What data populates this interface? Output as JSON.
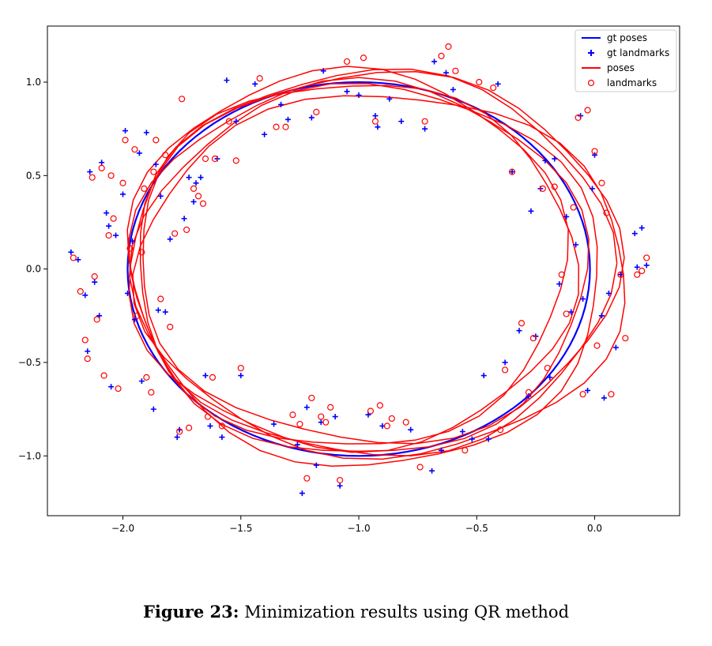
{
  "caption": {
    "label": "Figure 23:",
    "text": "Minimization results using QR method"
  },
  "chart_data": {
    "type": "scatter",
    "xlim": [
      -2.32,
      0.36
    ],
    "ylim": [
      -1.32,
      1.3
    ],
    "xticks": [
      -2.0,
      -1.5,
      -1.0,
      -0.5,
      0.0
    ],
    "xtick_labels": [
      "−2.0",
      "−1.5",
      "−1.0",
      "−0.5",
      "0.0"
    ],
    "yticks": [
      -1.0,
      -0.5,
      0.0,
      0.5,
      1.0
    ],
    "ytick_labels": [
      "−1.0",
      "−0.5",
      "0.0",
      "0.5",
      "1.0"
    ],
    "grid": false,
    "legend_position": "top-right",
    "colors": {
      "gt": "#0000ff",
      "est": "#ff0000"
    },
    "series": [
      {
        "name": "gt poses",
        "kind": "line",
        "shape": "ellipse",
        "center": [
          -1.0,
          0.0
        ],
        "radius": [
          0.98,
          1.0
        ]
      },
      {
        "name": "gt landmarks",
        "kind": "marker-plus",
        "points": [
          [
            -2.22,
            0.09
          ],
          [
            -2.19,
            0.05
          ],
          [
            -2.16,
            -0.14
          ],
          [
            -2.15,
            -0.44
          ],
          [
            -2.14,
            0.52
          ],
          [
            -2.12,
            -0.07
          ],
          [
            -2.1,
            -0.25
          ],
          [
            -2.09,
            0.57
          ],
          [
            -2.07,
            0.3
          ],
          [
            -2.06,
            0.23
          ],
          [
            -2.05,
            -0.63
          ],
          [
            -2.03,
            0.18
          ],
          [
            -2.0,
            0.4
          ],
          [
            -1.99,
            0.74
          ],
          [
            -1.98,
            -0.13
          ],
          [
            -1.96,
            0.15
          ],
          [
            -1.95,
            -0.27
          ],
          [
            -1.93,
            0.62
          ],
          [
            -1.92,
            -0.6
          ],
          [
            -1.9,
            0.73
          ],
          [
            -1.87,
            -0.75
          ],
          [
            -1.86,
            0.56
          ],
          [
            -1.85,
            -0.22
          ],
          [
            -1.84,
            0.39
          ],
          [
            -1.82,
            -0.23
          ],
          [
            -1.8,
            0.16
          ],
          [
            -1.77,
            -0.9
          ],
          [
            -1.76,
            -0.86
          ],
          [
            -1.74,
            0.27
          ],
          [
            -1.72,
            0.49
          ],
          [
            -1.7,
            0.36
          ],
          [
            -1.69,
            0.46
          ],
          [
            -1.67,
            0.49
          ],
          [
            -1.65,
            -0.57
          ],
          [
            -1.63,
            -0.84
          ],
          [
            -1.6,
            0.59
          ],
          [
            -1.58,
            -0.9
          ],
          [
            -1.56,
            1.01
          ],
          [
            -1.52,
            0.79
          ],
          [
            -1.5,
            -0.57
          ],
          [
            -1.44,
            0.99
          ],
          [
            -1.4,
            0.72
          ],
          [
            -1.36,
            -0.83
          ],
          [
            -1.33,
            0.88
          ],
          [
            -1.3,
            0.8
          ],
          [
            -1.26,
            -0.94
          ],
          [
            -1.24,
            -1.2
          ],
          [
            -1.22,
            -0.74
          ],
          [
            -1.2,
            0.81
          ],
          [
            -1.18,
            -1.05
          ],
          [
            -1.16,
            -0.82
          ],
          [
            -1.15,
            1.06
          ],
          [
            -1.1,
            -0.79
          ],
          [
            -1.08,
            -1.16
          ],
          [
            -1.05,
            0.95
          ],
          [
            -1.0,
            0.93
          ],
          [
            -0.96,
            -0.78
          ],
          [
            -0.93,
            0.82
          ],
          [
            -0.92,
            0.76
          ],
          [
            -0.9,
            -0.84
          ],
          [
            -0.87,
            0.91
          ],
          [
            -0.82,
            0.79
          ],
          [
            -0.78,
            -0.86
          ],
          [
            -0.72,
            0.75
          ],
          [
            -0.69,
            -1.08
          ],
          [
            -0.68,
            1.11
          ],
          [
            -0.65,
            -0.97
          ],
          [
            -0.63,
            1.05
          ],
          [
            -0.6,
            0.96
          ],
          [
            -0.56,
            -0.87
          ],
          [
            -0.52,
            -0.91
          ],
          [
            -0.47,
            -0.57
          ],
          [
            -0.45,
            -0.91
          ],
          [
            -0.41,
            0.99
          ],
          [
            -0.38,
            -0.5
          ],
          [
            -0.35,
            0.52
          ],
          [
            -0.32,
            -0.33
          ],
          [
            -0.28,
            -0.68
          ],
          [
            -0.27,
            0.31
          ],
          [
            -0.25,
            -0.36
          ],
          [
            -0.23,
            0.43
          ],
          [
            -0.21,
            0.58
          ],
          [
            -0.19,
            -0.58
          ],
          [
            -0.17,
            0.59
          ],
          [
            -0.15,
            -0.08
          ],
          [
            -0.12,
            0.28
          ],
          [
            -0.1,
            -0.23
          ],
          [
            -0.08,
            0.13
          ],
          [
            -0.06,
            0.82
          ],
          [
            -0.05,
            -0.16
          ],
          [
            -0.03,
            -0.65
          ],
          [
            -0.01,
            0.43
          ],
          [
            0.0,
            0.61
          ],
          [
            0.03,
            -0.25
          ],
          [
            0.04,
            -0.69
          ],
          [
            0.06,
            -0.13
          ],
          [
            0.09,
            -0.42
          ],
          [
            0.11,
            -0.03
          ],
          [
            0.17,
            0.19
          ],
          [
            0.18,
            0.01
          ],
          [
            0.2,
            0.22
          ],
          [
            0.22,
            0.02
          ]
        ]
      },
      {
        "name": "poses",
        "kind": "line",
        "shape": "loops",
        "loops": [
          [
            0.97,
            1.0,
            0.0,
            0.0
          ],
          [
            1.01,
            1.03,
            0.06,
            0.03
          ],
          [
            0.95,
            0.98,
            -0.03,
            0.02
          ],
          [
            1.04,
            0.97,
            0.1,
            -0.03
          ],
          [
            0.99,
            1.02,
            0.04,
            -0.04
          ],
          [
            0.93,
            1.01,
            -0.05,
            0.05
          ],
          [
            1.02,
            0.99,
            0.08,
            0.06
          ]
        ]
      },
      {
        "name": "landmarks",
        "kind": "marker-circle",
        "points": [
          [
            -2.21,
            0.06
          ],
          [
            -2.18,
            -0.12
          ],
          [
            -2.16,
            -0.38
          ],
          [
            -2.15,
            -0.48
          ],
          [
            -2.13,
            0.49
          ],
          [
            -2.12,
            -0.04
          ],
          [
            -2.11,
            -0.27
          ],
          [
            -2.09,
            0.54
          ],
          [
            -2.08,
            -0.57
          ],
          [
            -2.06,
            0.18
          ],
          [
            -2.05,
            0.5
          ],
          [
            -2.04,
            0.27
          ],
          [
            -2.02,
            -0.64
          ],
          [
            -2.0,
            0.46
          ],
          [
            -1.99,
            0.69
          ],
          [
            -1.97,
            0.11
          ],
          [
            -1.95,
            0.64
          ],
          [
            -1.94,
            -0.25
          ],
          [
            -1.92,
            0.09
          ],
          [
            -1.91,
            0.43
          ],
          [
            -1.9,
            -0.58
          ],
          [
            -1.88,
            -0.66
          ],
          [
            -1.87,
            0.52
          ],
          [
            -1.86,
            0.69
          ],
          [
            -1.84,
            -0.16
          ],
          [
            -1.82,
            0.61
          ],
          [
            -1.8,
            -0.31
          ],
          [
            -1.78,
            0.19
          ],
          [
            -1.76,
            -0.87
          ],
          [
            -1.75,
            0.91
          ],
          [
            -1.73,
            0.21
          ],
          [
            -1.72,
            -0.85
          ],
          [
            -1.7,
            0.43
          ],
          [
            -1.68,
            0.39
          ],
          [
            -1.66,
            0.35
          ],
          [
            -1.65,
            0.59
          ],
          [
            -1.64,
            -0.79
          ],
          [
            -1.62,
            -0.58
          ],
          [
            -1.61,
            0.59
          ],
          [
            -1.58,
            -0.84
          ],
          [
            -1.55,
            0.79
          ],
          [
            -1.52,
            0.58
          ],
          [
            -1.5,
            -0.53
          ],
          [
            -1.42,
            1.02
          ],
          [
            -1.35,
            0.76
          ],
          [
            -1.31,
            0.76
          ],
          [
            -1.28,
            -0.78
          ],
          [
            -1.25,
            -0.83
          ],
          [
            -1.22,
            -1.12
          ],
          [
            -1.2,
            -0.69
          ],
          [
            -1.18,
            0.84
          ],
          [
            -1.16,
            -0.79
          ],
          [
            -1.14,
            -0.82
          ],
          [
            -1.12,
            -0.74
          ],
          [
            -1.08,
            -1.13
          ],
          [
            -1.05,
            1.11
          ],
          [
            -0.98,
            1.13
          ],
          [
            -0.95,
            -0.76
          ],
          [
            -0.93,
            0.79
          ],
          [
            -0.91,
            -0.73
          ],
          [
            -0.88,
            -0.84
          ],
          [
            -0.86,
            -0.8
          ],
          [
            -0.8,
            -0.82
          ],
          [
            -0.74,
            -1.06
          ],
          [
            -0.72,
            0.79
          ],
          [
            -0.65,
            1.14
          ],
          [
            -0.62,
            1.19
          ],
          [
            -0.59,
            1.06
          ],
          [
            -0.55,
            -0.97
          ],
          [
            -0.49,
            1.0
          ],
          [
            -0.43,
            0.97
          ],
          [
            -0.4,
            -0.86
          ],
          [
            -0.38,
            -0.54
          ],
          [
            -0.35,
            0.52
          ],
          [
            -0.31,
            -0.29
          ],
          [
            -0.28,
            -0.66
          ],
          [
            -0.26,
            -0.37
          ],
          [
            -0.22,
            0.43
          ],
          [
            -0.2,
            -0.53
          ],
          [
            -0.17,
            0.44
          ],
          [
            -0.14,
            -0.03
          ],
          [
            -0.12,
            -0.24
          ],
          [
            -0.09,
            0.33
          ],
          [
            -0.07,
            0.81
          ],
          [
            -0.05,
            -0.67
          ],
          [
            -0.03,
            0.85
          ],
          [
            0.0,
            0.63
          ],
          [
            0.01,
            -0.41
          ],
          [
            0.03,
            0.46
          ],
          [
            0.05,
            0.3
          ],
          [
            0.07,
            -0.67
          ],
          [
            0.11,
            -0.03
          ],
          [
            0.13,
            -0.37
          ],
          [
            0.18,
            -0.03
          ],
          [
            0.2,
            -0.01
          ],
          [
            0.22,
            0.06
          ]
        ]
      }
    ]
  }
}
